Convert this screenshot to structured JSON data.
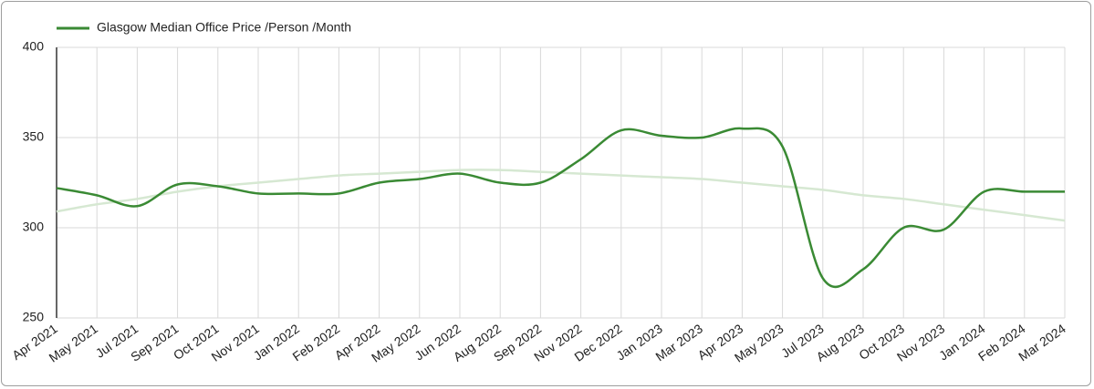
{
  "chart_data": {
    "type": "line",
    "categories": [
      "Apr 2021",
      "May 2021",
      "Jul 2021",
      "Sep 2021",
      "Oct 2021",
      "Nov 2021",
      "Jan 2022",
      "Feb 2022",
      "Apr 2022",
      "May 2022",
      "Jun 2022",
      "Aug 2022",
      "Sep 2022",
      "Nov 2022",
      "Dec 2022",
      "Jan 2023",
      "Mar 2023",
      "Apr 2023",
      "May 2023",
      "Jul 2023",
      "Aug 2023",
      "Oct 2023",
      "Nov 2023",
      "Jan 2024",
      "Feb 2024",
      "Mar 2024"
    ],
    "series": [
      {
        "name": "Glasgow Median Office Price /Person /Month",
        "color": "#3a8a34",
        "values": [
          322,
          318,
          312,
          324,
          323,
          319,
          319,
          319,
          325,
          327,
          330,
          325,
          325,
          338,
          354,
          351,
          350,
          355,
          345,
          272,
          277,
          300,
          299,
          320,
          320,
          320
        ]
      }
    ],
    "trendline": {
      "color": "#d6e8d2",
      "values": [
        309,
        313,
        316,
        320,
        323,
        325,
        327,
        329,
        330,
        331,
        332,
        332,
        331,
        330,
        329,
        328,
        327,
        325,
        323,
        321,
        318,
        316,
        313,
        310,
        307,
        304
      ]
    },
    "ylim": [
      250,
      400
    ],
    "yticks": [
      250,
      300,
      350,
      400
    ],
    "grid": true,
    "legend": "top"
  }
}
